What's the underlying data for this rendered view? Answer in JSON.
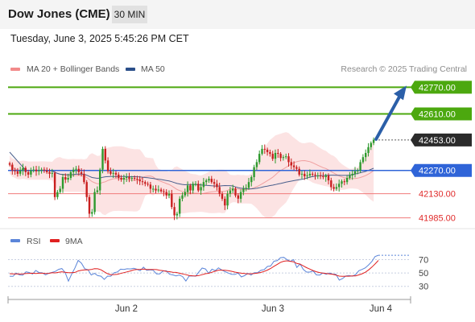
{
  "header": {
    "title": "Dow Jones (CME)",
    "timeframe": "30 MIN",
    "datetime": "Tuesday, June 3, 2025 5:45:26 PM CET"
  },
  "legend": {
    "main": [
      {
        "label": "MA 20 + Bollinger Bands",
        "color": "#f28a8a"
      },
      {
        "label": "MA 50",
        "color": "#2b4f8a"
      }
    ],
    "rsi": [
      {
        "label": "RSI",
        "color": "#5b85d9"
      },
      {
        "label": "9MA",
        "color": "#e02020"
      }
    ]
  },
  "credit": "Research © 2025 Trading Central",
  "chart_data": [
    {
      "type": "candlestick",
      "title": "",
      "x_ticks": [
        "Jun 2",
        "Jun 3",
        "Jun 4"
      ],
      "ylim": [
        41930,
        42830
      ],
      "levels": [
        {
          "value": 42770,
          "label": "42770.00",
          "kind": "resistance",
          "color": "#4ca80f"
        },
        {
          "value": 42610,
          "label": "42610.00",
          "kind": "resistance",
          "color": "#4ca80f"
        },
        {
          "value": 42453,
          "label": "42453.00",
          "kind": "last",
          "color": "#2b2b2b"
        },
        {
          "value": 42270,
          "label": "42270.00",
          "kind": "pivot",
          "color": "#2f64d8"
        },
        {
          "value": 42130,
          "label": "42130.00",
          "kind": "support",
          "color": "#e53030"
        },
        {
          "value": 41985,
          "label": "41985.00",
          "kind": "support",
          "color": "#e53030"
        }
      ],
      "arrow": {
        "from": 42453,
        "to": 42770,
        "color": "#2b5fa8"
      },
      "closes": [
        42305,
        42270,
        42265,
        42250,
        42270,
        42285,
        42260,
        42245,
        42270,
        42275,
        42265,
        42270,
        42275,
        42270,
        42260,
        42250,
        42255,
        42110,
        42140,
        42160,
        42230,
        42215,
        42225,
        42260,
        42275,
        42280,
        42260,
        42250,
        42200,
        42110,
        42010,
        42020,
        42140,
        42150,
        42275,
        42400,
        42330,
        42265,
        42250,
        42255,
        42245,
        42225,
        42215,
        42225,
        42230,
        42220,
        42225,
        42220,
        42215,
        42205,
        42200,
        42190,
        42185,
        42160,
        42160,
        42150,
        42155,
        42145,
        42140,
        42120,
        42130,
        42050,
        42000,
        42010,
        42100,
        42120,
        42140,
        42180,
        42150,
        42190,
        42190,
        42150,
        42170,
        42200,
        42210,
        42220,
        42200,
        42190,
        42170,
        42130,
        42100,
        42060,
        42130,
        42150,
        42160,
        42120,
        42100,
        42140,
        42160,
        42165,
        42200,
        42230,
        42290,
        42320,
        42370,
        42400,
        42395,
        42380,
        42370,
        42340,
        42375,
        42370,
        42345,
        42350,
        42355,
        42320,
        42300,
        42290,
        42280,
        42245,
        42250,
        42235,
        42240,
        42250,
        42245,
        42240,
        42240,
        42235,
        42230,
        42240,
        42210,
        42170,
        42160,
        42170,
        42190,
        42205,
        42200,
        42225,
        42240,
        42250,
        42265,
        42270,
        42320,
        42350,
        42375,
        42410,
        42435,
        42455
      ]
    },
    {
      "type": "line",
      "title": "",
      "series": [
        {
          "name": "RSI",
          "values": [
            45.2,
            44.9,
            49.7,
            47.1,
            46.6,
            51.7,
            50.7,
            48.4,
            53.7,
            50.6,
            50.2,
            47.2,
            49.6,
            50.9,
            52.2,
            55.4,
            56.6,
            50.7,
            37.8,
            48.2,
            57.5,
            68.8,
            64.5,
            56.3,
            54.9,
            47.0,
            49.4,
            46.0,
            45.2,
            40.4,
            45.3,
            45.2,
            50.3,
            51.4,
            55.6,
            55.2,
            56.2,
            56.0,
            57.0,
            55.5,
            53.3,
            58.6,
            53.8,
            54.7,
            53.9,
            48.6,
            48.6,
            52.9,
            53.3,
            48.1,
            47.1,
            45.6,
            46.8,
            44.6,
            37.9,
            45.4,
            45.5,
            45.1,
            51.6,
            57.3,
            56.0,
            49.4,
            55.6,
            53.5,
            57.7,
            54.4,
            52.0,
            49.8,
            48.1,
            47.8,
            49.8,
            44.1,
            46.0,
            49.4,
            46.8,
            50.4,
            50.5,
            54.1,
            54.9,
            59.7,
            60.5,
            67.5,
            68.4,
            72.8,
            73.3,
            70.0,
            67.3,
            69.8,
            58.3,
            63.3,
            55.2,
            51.3,
            51.3,
            53.1,
            47.1,
            46.8,
            50.0,
            48.1,
            50.0,
            48.3,
            48.1,
            39.2,
            41.5,
            45.4,
            46.3,
            45.1,
            47.5,
            53.3,
            55.3,
            57.7,
            62.0,
            67.2,
            74.6,
            76.4
          ]
        },
        {
          "name": "9MA",
          "values": [
            48.9,
            48.7,
            48.5,
            48.4,
            48.6,
            49.2,
            49.4,
            49.6,
            49.3,
            49.6,
            49.6,
            49.3,
            49.4,
            50.4,
            50.1,
            51.1,
            51.8,
            51.1,
            50.5,
            50.3,
            50.8,
            53.0,
            54.1,
            54.7,
            54.6,
            55.1,
            56.4,
            56.2,
            54.7,
            51.7,
            48.9,
            47.4,
            47.6,
            48.1,
            49.3,
            50.5,
            51.6,
            53.0,
            54.5,
            55.2,
            55.4,
            55.7,
            55.2,
            55.3,
            55.3,
            55.0,
            54.0,
            53.5,
            52.4,
            51.9,
            51.0,
            50.8,
            49.6,
            48.7,
            47.4,
            46.3,
            45.7,
            45.5,
            46.1,
            47.5,
            48.9,
            49.5,
            51.1,
            52.6,
            54.2,
            54.2,
            53.9,
            53.4,
            52.5,
            51.3,
            50.5,
            49.6,
            49.1,
            48.6,
            48.9,
            49.2,
            49.8,
            50.8,
            52.2,
            54.3,
            56.7,
            60.0,
            62.8,
            65.9,
            67.6,
            68.2,
            67.4,
            66.7,
            64.2,
            63.2,
            60.6,
            57.9,
            55.7,
            53.6,
            51.8,
            50.6,
            49.7,
            49.1,
            48.6,
            47.9,
            46.9,
            45.3,
            45.0,
            45.1,
            45.2,
            45.5,
            45.6,
            47.1,
            48.8,
            51.1,
            54.5,
            58.8,
            63.5,
            68.8
          ]
        }
      ],
      "levels": [
        70,
        50,
        30
      ],
      "ylim": [
        20,
        85
      ]
    }
  ]
}
